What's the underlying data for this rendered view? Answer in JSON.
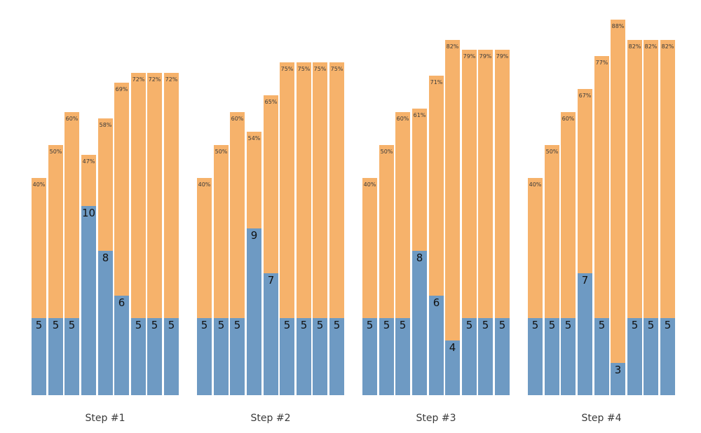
{
  "chart_data": {
    "type": "bar",
    "stacked": true,
    "grid": false,
    "axes_visible": false,
    "legend": null,
    "colors": {
      "bottom_segment": "#6E9AC3",
      "top_segment": "#F6B26B",
      "percent_text": "#3a3a3a",
      "value_text": "#111111",
      "group_label_text": "#3a3a3a"
    },
    "groups": [
      {
        "label": "Step #1",
        "bars": [
          {
            "value": 5,
            "value_label": "5",
            "percent": 40,
            "percent_label": "40%"
          },
          {
            "value": 5,
            "value_label": "5",
            "percent": 50,
            "percent_label": "50%"
          },
          {
            "value": 5,
            "value_label": "5",
            "percent": 60,
            "percent_label": "60%"
          },
          {
            "value": 10,
            "value_label": "10",
            "percent": 47,
            "percent_label": "47%"
          },
          {
            "value": 8,
            "value_label": "8",
            "percent": 58,
            "percent_label": "58%"
          },
          {
            "value": 6,
            "value_label": "6",
            "percent": 69,
            "percent_label": "69%"
          },
          {
            "value": 5,
            "value_label": "5",
            "percent": 72,
            "percent_label": "72%"
          },
          {
            "value": 5,
            "value_label": "5",
            "percent": 72,
            "percent_label": "72%"
          },
          {
            "value": 5,
            "value_label": "5",
            "percent": 72,
            "percent_label": "72%"
          }
        ]
      },
      {
        "label": "Step #2",
        "bars": [
          {
            "value": 5,
            "value_label": "5",
            "percent": 40,
            "percent_label": "40%"
          },
          {
            "value": 5,
            "value_label": "5",
            "percent": 50,
            "percent_label": "50%"
          },
          {
            "value": 5,
            "value_label": "5",
            "percent": 60,
            "percent_label": "60%"
          },
          {
            "value": 9,
            "value_label": "9",
            "percent": 54,
            "percent_label": "54%"
          },
          {
            "value": 7,
            "value_label": "7",
            "percent": 65,
            "percent_label": "65%"
          },
          {
            "value": 5,
            "value_label": "5",
            "percent": 75,
            "percent_label": "75%"
          },
          {
            "value": 5,
            "value_label": "5",
            "percent": 75,
            "percent_label": "75%"
          },
          {
            "value": 5,
            "value_label": "5",
            "percent": 75,
            "percent_label": "75%"
          },
          {
            "value": 5,
            "value_label": "5",
            "percent": 75,
            "percent_label": "75%"
          }
        ]
      },
      {
        "label": "Step #3",
        "bars": [
          {
            "value": 5,
            "value_label": "5",
            "percent": 40,
            "percent_label": "40%"
          },
          {
            "value": 5,
            "value_label": "5",
            "percent": 50,
            "percent_label": "50%"
          },
          {
            "value": 5,
            "value_label": "5",
            "percent": 60,
            "percent_label": "60%"
          },
          {
            "value": 8,
            "value_label": "8",
            "percent": 61,
            "percent_label": "61%"
          },
          {
            "value": 6,
            "value_label": "6",
            "percent": 71,
            "percent_label": "71%"
          },
          {
            "value": 4,
            "value_label": "4",
            "percent": 82,
            "percent_label": "82%"
          },
          {
            "value": 5,
            "value_label": "5",
            "percent": 79,
            "percent_label": "79%"
          },
          {
            "value": 5,
            "value_label": "5",
            "percent": 79,
            "percent_label": "79%"
          },
          {
            "value": 5,
            "value_label": "5",
            "percent": 79,
            "percent_label": "79%"
          }
        ]
      },
      {
        "label": "Step #4",
        "bars": [
          {
            "value": 5,
            "value_label": "5",
            "percent": 40,
            "percent_label": "40%"
          },
          {
            "value": 5,
            "value_label": "5",
            "percent": 50,
            "percent_label": "50%"
          },
          {
            "value": 5,
            "value_label": "5",
            "percent": 60,
            "percent_label": "60%"
          },
          {
            "value": 7,
            "value_label": "7",
            "percent": 67,
            "percent_label": "67%"
          },
          {
            "value": 5,
            "value_label": "5",
            "percent": 77,
            "percent_label": "77%"
          },
          {
            "value": 3,
            "value_label": "3",
            "percent": 88,
            "percent_label": "88%"
          },
          {
            "value": 5,
            "value_label": "5",
            "percent": 82,
            "percent_label": "82%"
          },
          {
            "value": 5,
            "value_label": "5",
            "percent": 82,
            "percent_label": "82%"
          },
          {
            "value": 5,
            "value_label": "5",
            "percent": 82,
            "percent_label": "82%"
          }
        ]
      }
    ]
  }
}
